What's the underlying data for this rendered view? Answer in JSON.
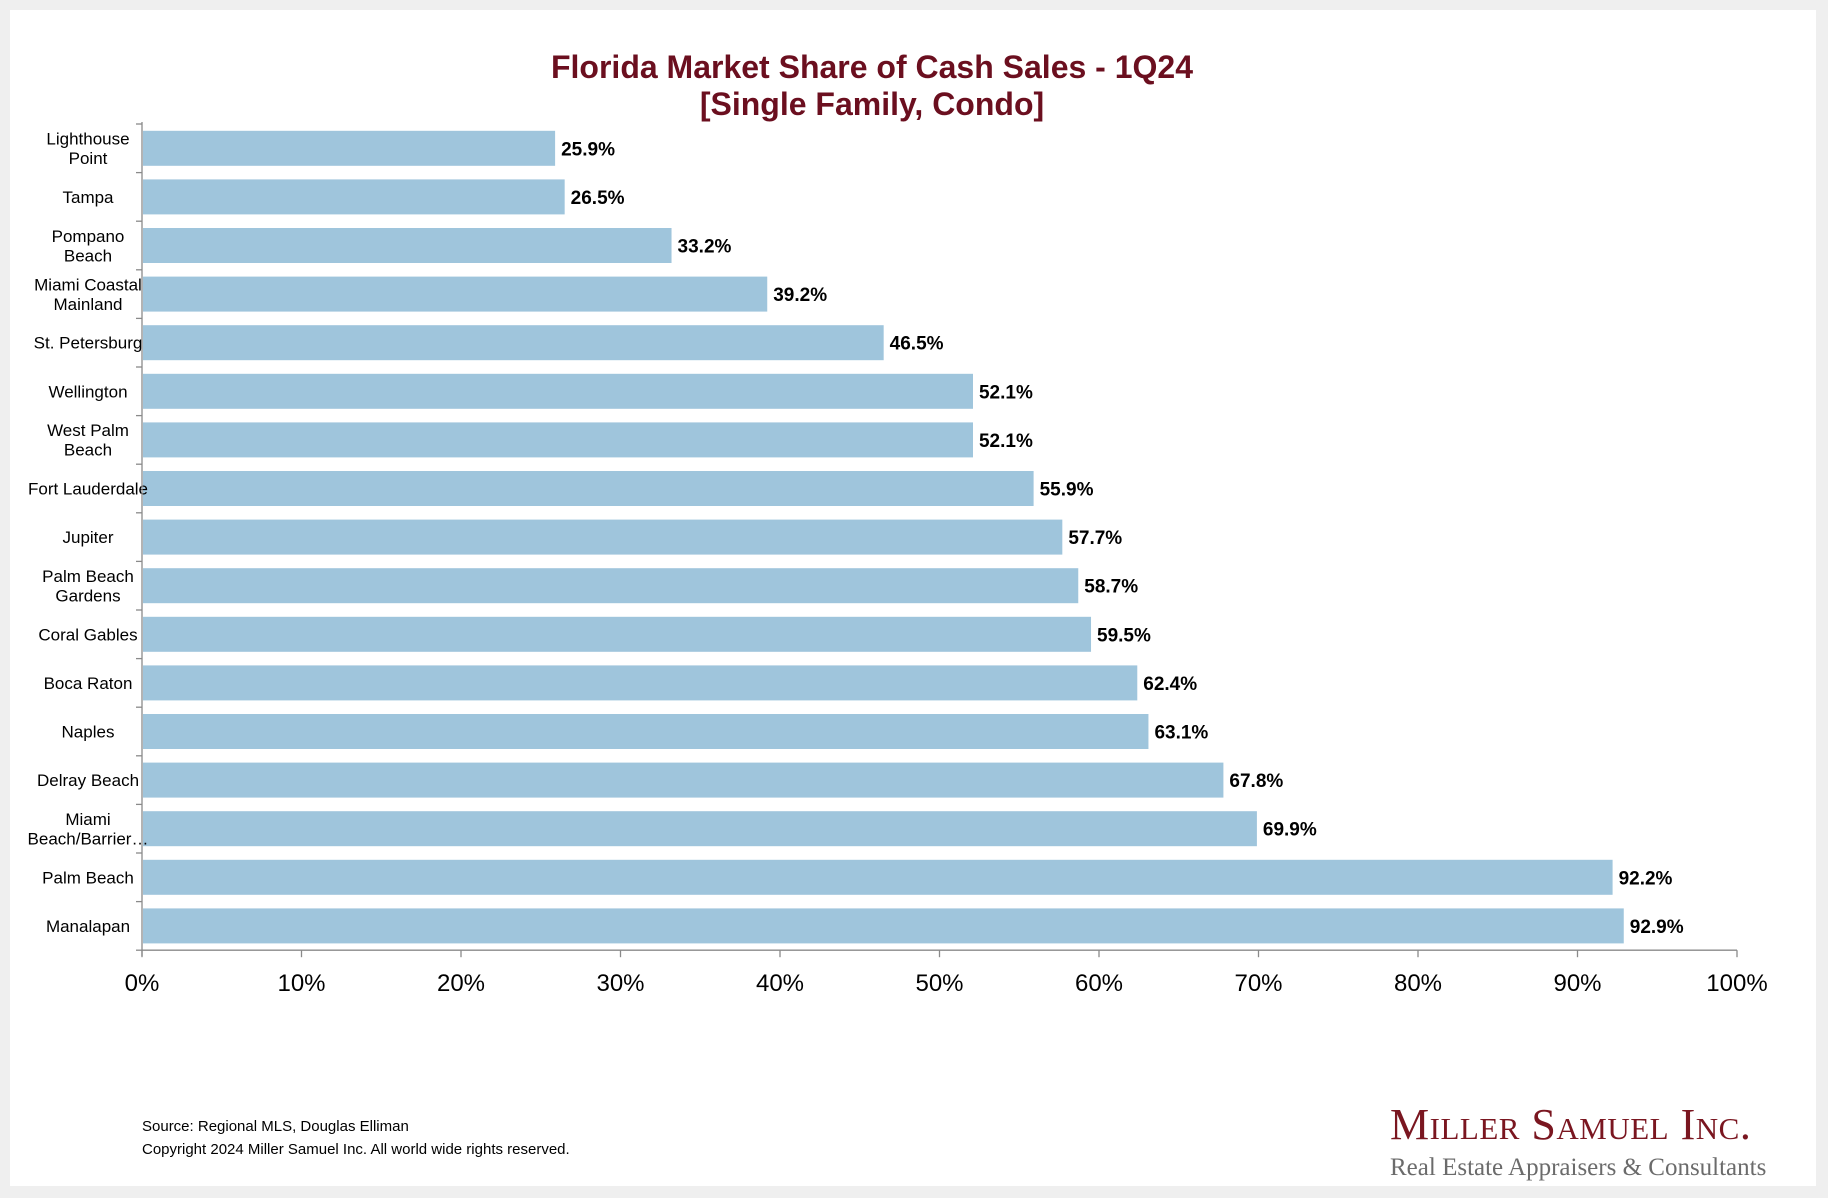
{
  "chart_data": {
    "type": "bar",
    "orientation": "horizontal",
    "title": [
      "Florida Market Share of Cash Sales - 1Q24",
      "[Single Family, Condo]"
    ],
    "categories": [
      [
        "Lighthouse",
        "Point"
      ],
      [
        "Tampa"
      ],
      [
        "Pompano",
        "Beach"
      ],
      [
        "Miami Coastal",
        "Mainland"
      ],
      [
        "St. Petersburg"
      ],
      [
        "Wellington"
      ],
      [
        "West Palm",
        "Beach"
      ],
      [
        "Fort Lauderdale"
      ],
      [
        "Jupiter"
      ],
      [
        "Palm Beach",
        "Gardens"
      ],
      [
        "Coral Gables"
      ],
      [
        "Boca Raton"
      ],
      [
        "Naples"
      ],
      [
        "Delray Beach"
      ],
      [
        "Miami",
        "Beach/Barrier…"
      ],
      [
        "Palm Beach"
      ],
      [
        "Manalapan"
      ]
    ],
    "values": [
      25.9,
      26.5,
      33.2,
      39.2,
      46.5,
      52.1,
      52.1,
      55.9,
      57.7,
      58.7,
      59.5,
      62.4,
      63.1,
      67.8,
      69.9,
      92.2,
      92.9
    ],
    "value_labels": [
      "25.9%",
      "26.5%",
      "33.2%",
      "39.2%",
      "46.5%",
      "52.1%",
      "52.1%",
      "55.9%",
      "57.7%",
      "58.7%",
      "59.5%",
      "62.4%",
      "63.1%",
      "67.8%",
      "69.9%",
      "92.2%",
      "92.9%"
    ],
    "xlabel": "",
    "ylabel": "",
    "xlim": [
      0,
      100
    ],
    "x_ticks": [
      0,
      10,
      20,
      30,
      40,
      50,
      60,
      70,
      80,
      90,
      100
    ],
    "x_tick_labels": [
      "0%",
      "10%",
      "20%",
      "30%",
      "40%",
      "50%",
      "60%",
      "70%",
      "80%",
      "90%",
      "100%"
    ],
    "grid": false,
    "legend": "none",
    "bar_color": "#9fc5dc",
    "title_color": "#6b0f1f"
  },
  "footer": {
    "source": "Source: Regional MLS, Douglas Elliman",
    "copyright": "Copyright 2024 Miller Samuel Inc.  All world wide rights reserved."
  },
  "brand": {
    "name": "Miller Samuel Inc.",
    "tagline": "Real Estate Appraisers & Consultants",
    "color": "#7a1620"
  }
}
